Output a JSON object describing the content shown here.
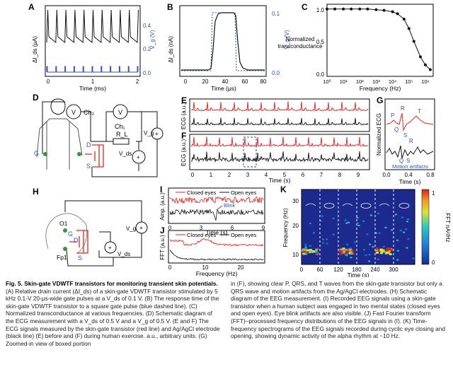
{
  "colors": {
    "red": "#e8261f",
    "blue": "#2b55c8",
    "black": "#111111",
    "green": "#2e9a3a",
    "gray": "#777777"
  },
  "panel_labels": [
    "A",
    "B",
    "C",
    "D",
    "E",
    "F",
    "G",
    "H",
    "I",
    "J",
    "K"
  ],
  "panelA": {
    "ylabel_left": "ΔI_ds (μA)",
    "ylabel_right": "V_g (V)",
    "xlabel": "Time (ms)",
    "xticks": [
      "0",
      "1",
      "2"
    ],
    "yticks_right": [
      "0.0",
      "0.2",
      "0.4"
    ]
  },
  "panelB": {
    "ylabel_left": "ΔI_ds (nA)",
    "ylabel_right": "V_g (V)",
    "xlabel": "Time (μs)",
    "xticks": [
      "0",
      "20",
      "40",
      "60",
      "80"
    ],
    "yticks_right": [
      "0.0",
      "0.1"
    ]
  },
  "panelC": {
    "ylabel": "Normalized transconductance",
    "xlabel": "Frequency (Hz)",
    "yticks": [
      "0.0",
      "0.5",
      "1.0"
    ],
    "xticks": [
      "10⁰",
      "10¹",
      "10²",
      "10³",
      "10⁴",
      "10⁵",
      "10⁶"
    ]
  },
  "chart_data": {
    "type": "scatter",
    "xlabel": "Frequency (Hz)",
    "ylabel": "Normalized transconductance",
    "log_x": true,
    "xlim": [
      1,
      3000000
    ],
    "ylim": [
      0,
      1.05
    ],
    "x": [
      1,
      3,
      10,
      30,
      100,
      300,
      1000,
      3000,
      10000,
      20000,
      50000,
      100000,
      200000,
      500000,
      1000000,
      2000000
    ],
    "y": [
      1.0,
      1.0,
      1.0,
      1.0,
      1.0,
      1.0,
      0.99,
      0.98,
      0.96,
      0.93,
      0.85,
      0.71,
      0.52,
      0.29,
      0.17,
      0.1
    ]
  },
  "panelD": {
    "ch2": "Ch₂",
    "ch1": "Ch₁",
    "V": "V",
    "RL": "R_L",
    "Vg": "V_g",
    "Vds": "V_ds",
    "G": "G",
    "D": "D",
    "S": "S"
  },
  "panelE": {
    "ylabel": "ECG (a.u.)"
  },
  "panelF": {
    "ylabel": "ECG (a.u.)",
    "xlabel": "Time (s)",
    "xticks": [
      "0",
      "1",
      "2",
      "3",
      "4",
      "5",
      "6",
      "7",
      "8",
      "9"
    ]
  },
  "panelG": {
    "ylabel": "Normalized ECG",
    "xlabel": "Time (s)",
    "xticks": [
      "0.0",
      "0.4",
      "0.8"
    ],
    "P": "P",
    "R": "R",
    "Q": "Q",
    "S": "S",
    "T": "T",
    "artifacts": "Motion artifacts"
  },
  "panelH": {
    "O1": "O1",
    "Fp1": "Fp1",
    "G": "G",
    "D": "D",
    "S": "S",
    "Vg": "V_g",
    "Vds": "V_ds"
  },
  "panelI": {
    "ylabel": "Amp. (a.u.)",
    "xlabel": "Time (s)",
    "legend_closed": "Closed eyes",
    "legend_open": "Open eyes",
    "blink": "Blink",
    "xticks": [
      "0",
      "3",
      "6",
      "9"
    ]
  },
  "panelJ": {
    "ylabel": "FFT (a.u.)",
    "xlabel": "Frequency (Hz)",
    "legend_closed": "Closed eyes",
    "legend_open": "Open eyes",
    "xticks": [
      "0",
      "10",
      "20"
    ]
  },
  "panelK": {
    "ylabel": "Frequency (Hz)",
    "xlabel": "Time (s)",
    "cbar_label": "FFT nA²/Hz",
    "cbar_ticks": [
      "0",
      "1"
    ],
    "yticks": [
      "10",
      "20",
      "30"
    ],
    "xticks": [
      "0",
      "60",
      "120",
      "180",
      "240",
      "300"
    ]
  },
  "caption": {
    "title": "Fig. 5. Skin-gate VDWTF transistors for monitoring transient skin potentials.",
    "left_body": " (A) Relative drain current (ΔI_ds) of a skin-gate VDWTF transistor stimulated by 5 kHz 0.1-V 20-μs-wide gate pulses at a V_ds of 0.1 V. (B) The response time of the skin-gate VDWTF transistor to a square gate pulse (blue dashed line). (C) Normalized transconductance at various frequencies. (D) Schematic diagram of the ECG measurement with a V_ds of 0.5 V and a V_g of 0.5 V. (E and F) The ECG signals measured by the skin-gate transistor (red line) and Ag/AgCl electrode (black line) (E) before and (F) during human exercise. a.u., arbitrary units. (G) Zoomed-in view of boxed portion",
    "right_body": "in (F), showing clear P, QRS, and T waves from the skin-gate transistor but only a QRS wave and motion artifacts from the Ag/AgCl electrodes. (H) Schematic diagram of the EEG measurement. (I) Recorded EEG signals using a skin-gate transistor when a human subject was engaged in two mental states (closed eyes and open eyes). Eye blink artifacts are also visible. (J) Fast Fourier transform (FFT)–processed frequency distributions of the EEG signals in (I). (K) Time-frequency spectrograms of the EEG signals recorded during cyclic eye closing and opening, showing dynamic activity of the alpha rhythm at ~10 Hz."
  }
}
